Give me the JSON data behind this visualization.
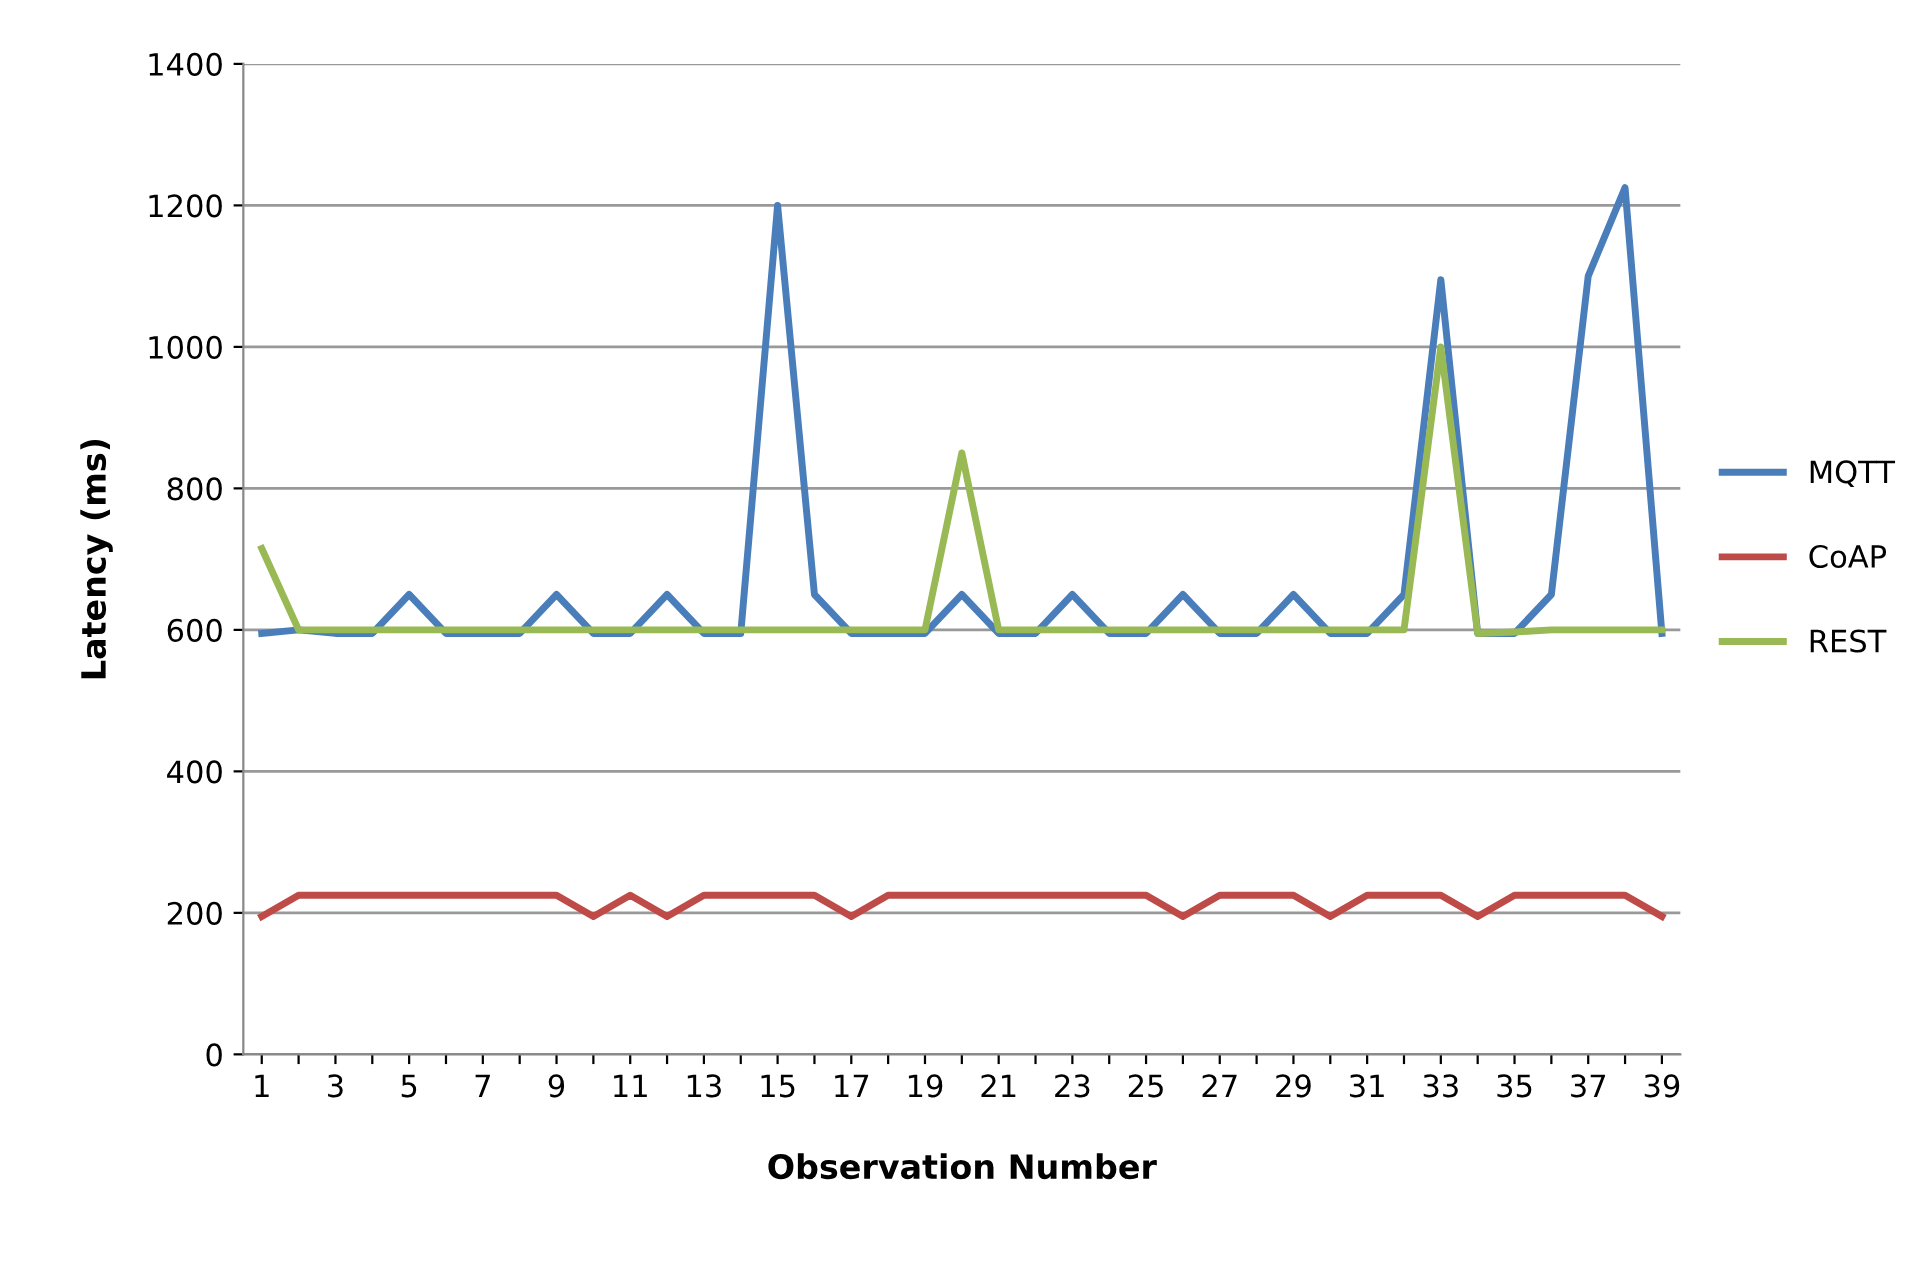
{
  "chart_data": {
    "type": "line",
    "xlabel": "Observation Number",
    "ylabel": "Latency (ms)",
    "categories": [
      "1",
      null,
      "3",
      null,
      "5",
      null,
      "7",
      null,
      "9",
      null,
      "11",
      null,
      "13",
      null,
      "15",
      null,
      "17",
      null,
      "19",
      null,
      "21",
      null,
      "23",
      null,
      "25",
      null,
      "27",
      null,
      "29",
      null,
      "31",
      null,
      "33",
      null,
      "35",
      null,
      "37",
      null,
      "39"
    ],
    "ylim": [
      0,
      1400
    ],
    "yticks": [
      0,
      200,
      400,
      600,
      800,
      1000,
      1200,
      1400
    ],
    "grid": "y",
    "legend": "right",
    "line_style": "solid",
    "marker": "none",
    "series": [
      {
        "name": "MQTT",
        "color": "#4a7ebb",
        "values": [
          595,
          600,
          595,
          595,
          650,
          595,
          595,
          595,
          650,
          595,
          595,
          650,
          595,
          595,
          1200,
          650,
          595,
          595,
          595,
          650,
          595,
          595,
          650,
          595,
          595,
          650,
          595,
          595,
          650,
          595,
          595,
          650,
          1095,
          595,
          595,
          650,
          1100,
          1225,
          595
        ]
      },
      {
        "name": "CoAP",
        "color": "#be4b48",
        "values": [
          195,
          225,
          225,
          225,
          225,
          225,
          225,
          225,
          225,
          195,
          225,
          195,
          225,
          225,
          225,
          225,
          195,
          225,
          225,
          225,
          225,
          225,
          225,
          225,
          225,
          195,
          225,
          225,
          225,
          195,
          225,
          225,
          225,
          195,
          225,
          225,
          225,
          225,
          195
        ]
      },
      {
        "name": "REST",
        "color": "#98b954",
        "values": [
          715,
          600,
          600,
          600,
          600,
          600,
          600,
          600,
          600,
          600,
          600,
          600,
          600,
          600,
          600,
          600,
          600,
          600,
          600,
          850,
          600,
          600,
          600,
          600,
          600,
          600,
          600,
          600,
          600,
          600,
          600,
          600,
          1000,
          595,
          597,
          600,
          600,
          600,
          600
        ]
      }
    ]
  }
}
